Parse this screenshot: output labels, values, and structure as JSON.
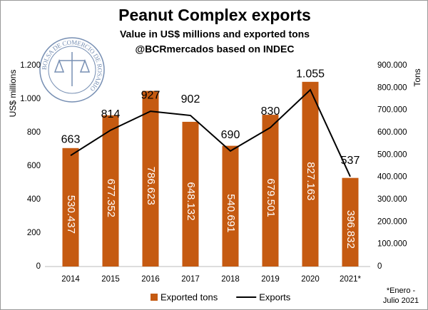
{
  "chart_data": {
    "type": "bar",
    "title": "Peanut Complex exports",
    "subtitle": "Value in US$ millions and exported tons",
    "source": "@BCRmercados based on INDEC",
    "logo_text": "BOLSA DE COMERCIO DE ROSARIO",
    "y_label": "US$ millions",
    "y2_label": "Tons",
    "footnote": "*Enero - Julio 2021",
    "categories": [
      "2014",
      "2015",
      "2016",
      "2017",
      "2018",
      "2019",
      "2020",
      "2021*"
    ],
    "series": [
      {
        "name": "Exported tons",
        "type": "bar",
        "axis": "y2",
        "color": "#c55a11",
        "values": [
          530437,
          677352,
          786623,
          648132,
          540691,
          679501,
          827163,
          396832
        ],
        "value_labels": [
          "530.437",
          "677.352",
          "786.623",
          "648.132",
          "540.691",
          "679.501",
          "827.163",
          "396.832"
        ]
      },
      {
        "name": "Exports",
        "type": "line",
        "axis": "y",
        "color": "#000000",
        "values": [
          663,
          814,
          927,
          902,
          690,
          830,
          1055,
          537
        ],
        "value_labels": [
          "663",
          "814",
          "927",
          "902",
          "690",
          "830",
          "1.055",
          "537"
        ]
      }
    ],
    "ylim": [
      0,
      1200
    ],
    "yticks": [
      0,
      200,
      400,
      600,
      800,
      {
        "value": 1000,
        "label": "1.000"
      },
      {
        "value": 1200,
        "label": "1.200"
      }
    ],
    "y2lim": [
      0,
      900000
    ],
    "y2ticks": [
      0,
      {
        "value": 100000,
        "label": "100.000"
      },
      {
        "value": 200000,
        "label": "200.000"
      },
      {
        "value": 300000,
        "label": "300.000"
      },
      {
        "value": 400000,
        "label": "400.000"
      },
      {
        "value": 500000,
        "label": "500.000"
      },
      {
        "value": 600000,
        "label": "600.000"
      },
      {
        "value": 700000,
        "label": "700.000"
      },
      {
        "value": 800000,
        "label": "800.000"
      },
      {
        "value": 900000,
        "label": "900.000"
      }
    ],
    "legend": "bottom"
  }
}
